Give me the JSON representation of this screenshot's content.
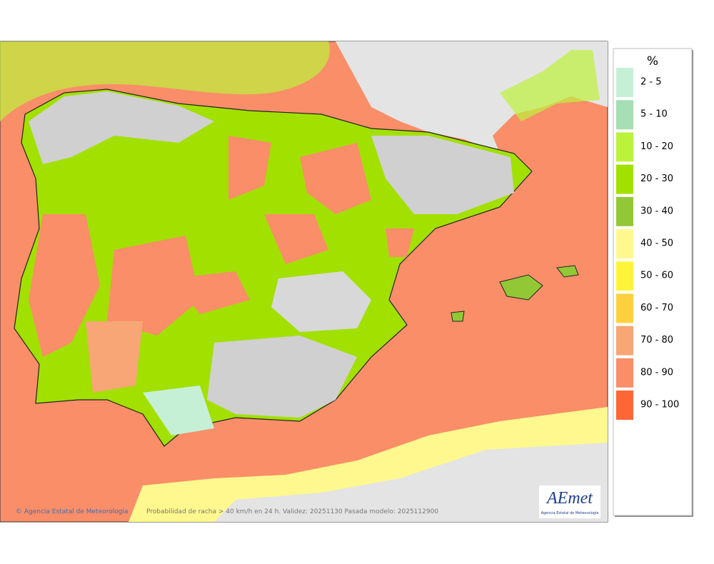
{
  "legend": {
    "title": "%",
    "items": [
      {
        "label": "2 - 5",
        "color": "#c6f0d6"
      },
      {
        "label": "5 - 10",
        "color": "#a6deb6"
      },
      {
        "label": "10 - 20",
        "color": "#bdf23c"
      },
      {
        "label": "20 - 30",
        "color": "#a2e000"
      },
      {
        "label": "30 - 40",
        "color": "#92c836"
      },
      {
        "label": "40 - 50",
        "color": "#fff88e"
      },
      {
        "label": "50 - 60",
        "color": "#fff43a"
      },
      {
        "label": "60 - 70",
        "color": "#ffd03e"
      },
      {
        "label": "70 - 80",
        "color": "#f8a676"
      },
      {
        "label": "80 - 90",
        "color": "#f98e68"
      },
      {
        "label": "90 - 100",
        "color": "#ff6636"
      }
    ]
  },
  "footer": {
    "credit": "Agencia Estatal de Meteorología",
    "caption": "Probabilidad de racha > 40 km/h en 24 h. Validez: 20251130 Pasada modelo: 2025112900"
  },
  "logo": {
    "text": "AEmet",
    "subtitle": "Agencia Estatal de Meteorología"
  }
}
